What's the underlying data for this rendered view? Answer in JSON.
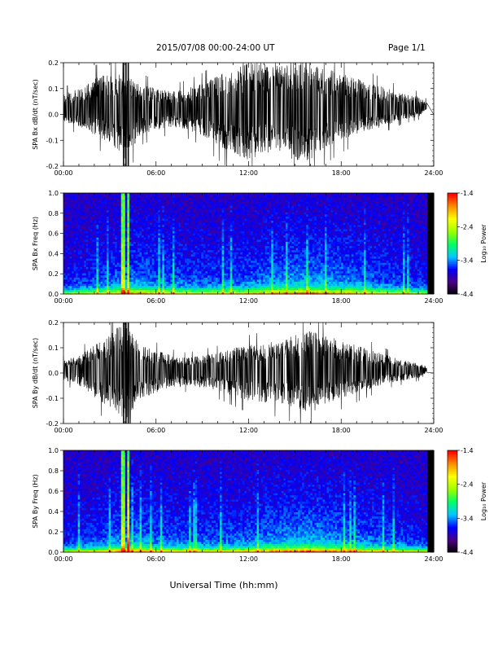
{
  "header": {
    "title": "2015/07/08  00:00-24:00 UT",
    "page": "Page 1/1"
  },
  "colors": {
    "trace": "#000000",
    "colormap": [
      "#000000",
      "#4b0082",
      "#0000ff",
      "#00c8ff",
      "#00ff66",
      "#9cff00",
      "#ffff00",
      "#ff8c00",
      "#ff0000"
    ]
  },
  "chart_data": [
    {
      "type": "line",
      "ylabel": "SPA Bx dB/dt (nT/sec)",
      "xlim": [
        "00:00",
        "24:00"
      ],
      "ylim": [
        -0.2,
        0.2
      ],
      "x_ticks": [
        "00:00",
        "06:00",
        "12:00",
        "18:00",
        "24:00"
      ],
      "y_ticks": [
        "-0.2",
        "-0.1",
        "0.0",
        "0.1",
        "0.2"
      ],
      "envelope": {
        "hours": [
          0,
          1,
          2,
          3,
          4,
          5,
          6,
          7,
          8,
          9,
          10,
          11,
          12,
          13,
          14,
          15,
          16,
          17,
          18,
          19,
          20,
          21,
          22,
          23,
          23.5,
          24
        ],
        "upper": [
          0.06,
          0.08,
          0.12,
          0.14,
          0.14,
          0.1,
          0.08,
          0.07,
          0.08,
          0.1,
          0.13,
          0.16,
          0.18,
          0.18,
          0.17,
          0.19,
          0.2,
          0.16,
          0.14,
          0.12,
          0.1,
          0.08,
          0.06,
          0.05,
          0.03,
          0.03
        ],
        "lower": [
          -0.05,
          -0.07,
          -0.1,
          -0.14,
          -0.2,
          -0.1,
          -0.08,
          -0.07,
          -0.08,
          -0.1,
          -0.14,
          -0.17,
          -0.2,
          -0.17,
          -0.16,
          -0.2,
          -0.2,
          -0.15,
          -0.12,
          -0.1,
          -0.08,
          -0.06,
          -0.04,
          -0.03,
          0.0,
          0.0
        ]
      }
    },
    {
      "type": "heatmap",
      "ylabel": "SPA Bx Freq (Hz)",
      "xlim": [
        "00:00",
        "24:00"
      ],
      "ylim": [
        0.0,
        1.0
      ],
      "x_ticks": [
        "00:00",
        "06:00",
        "12:00",
        "18:00",
        "24:00"
      ],
      "y_ticks": [
        "0.0",
        "0.2",
        "0.4",
        "0.6",
        "0.8",
        "1.0"
      ],
      "colorbar": {
        "label": "Log₁₀ Power",
        "range": [
          -4.4,
          -1.4
        ],
        "ticks": [
          "-1.4",
          "-2.4",
          "-3.4",
          "-4.4"
        ]
      }
    },
    {
      "type": "line",
      "ylabel": "SPA By dB/dt (nT/sec)",
      "xlim": [
        "00:00",
        "24:00"
      ],
      "ylim": [
        -0.2,
        0.2
      ],
      "x_ticks": [
        "00:00",
        "06:00",
        "12:00",
        "18:00",
        "24:00"
      ],
      "y_ticks": [
        "-0.2",
        "-0.1",
        "0.0",
        "0.1",
        "0.2"
      ],
      "envelope": {
        "hours": [
          0,
          1,
          2,
          3,
          4,
          5,
          6,
          7,
          8,
          9,
          10,
          11,
          12,
          13,
          14,
          15,
          16,
          17,
          18,
          19,
          20,
          21,
          22,
          23,
          23.5,
          24
        ],
        "upper": [
          0.04,
          0.06,
          0.1,
          0.14,
          0.2,
          0.1,
          0.08,
          0.06,
          0.05,
          0.06,
          0.07,
          0.09,
          0.1,
          0.11,
          0.12,
          0.14,
          0.16,
          0.14,
          0.12,
          0.1,
          0.08,
          0.06,
          0.04,
          0.03,
          0.02,
          0.0
        ],
        "lower": [
          -0.04,
          -0.06,
          -0.11,
          -0.15,
          -0.2,
          -0.11,
          -0.09,
          -0.07,
          -0.06,
          -0.07,
          -0.08,
          -0.1,
          -0.12,
          -0.13,
          -0.13,
          -0.15,
          -0.17,
          -0.13,
          -0.11,
          -0.09,
          -0.07,
          -0.05,
          -0.04,
          -0.03,
          -0.01,
          0.0
        ]
      }
    },
    {
      "type": "heatmap",
      "ylabel": "SPA By Freq (Hz)",
      "xlabel": "Universal Time (hh:mm)",
      "xlim": [
        "00:00",
        "24:00"
      ],
      "ylim": [
        0.0,
        1.0
      ],
      "x_ticks": [
        "00:00",
        "06:00",
        "12:00",
        "18:00",
        "24:00"
      ],
      "y_ticks": [
        "0.0",
        "0.2",
        "0.4",
        "0.6",
        "0.8",
        "1.0"
      ],
      "colorbar": {
        "label": "Log₁₀ Power",
        "range": [
          -4.4,
          -1.4
        ],
        "ticks": [
          "-1.4",
          "-2.4",
          "-3.4",
          "-4.4"
        ]
      }
    }
  ]
}
